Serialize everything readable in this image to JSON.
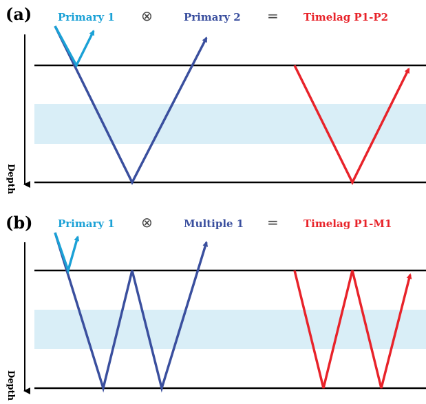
{
  "colors": {
    "primary1": "#1ba1d6",
    "raypath": "#3a4f9e",
    "timelag": "#e8232a",
    "layer": "#d9eef7",
    "interface": "#000000",
    "operator": "#444444"
  },
  "panel_a": {
    "label": "(a)",
    "term1": "Primary 1",
    "op1": "⊗",
    "term2": "Primary 2",
    "op2": "=",
    "result": "Timelag P1-P2",
    "axis_label": "Depth"
  },
  "panel_b": {
    "label": "(b)",
    "term1": "Primary 1",
    "op1": "⊗",
    "term2": "Multiple 1",
    "op2": "=",
    "result": "Timelag P1-M1",
    "axis_label": "Depth"
  }
}
